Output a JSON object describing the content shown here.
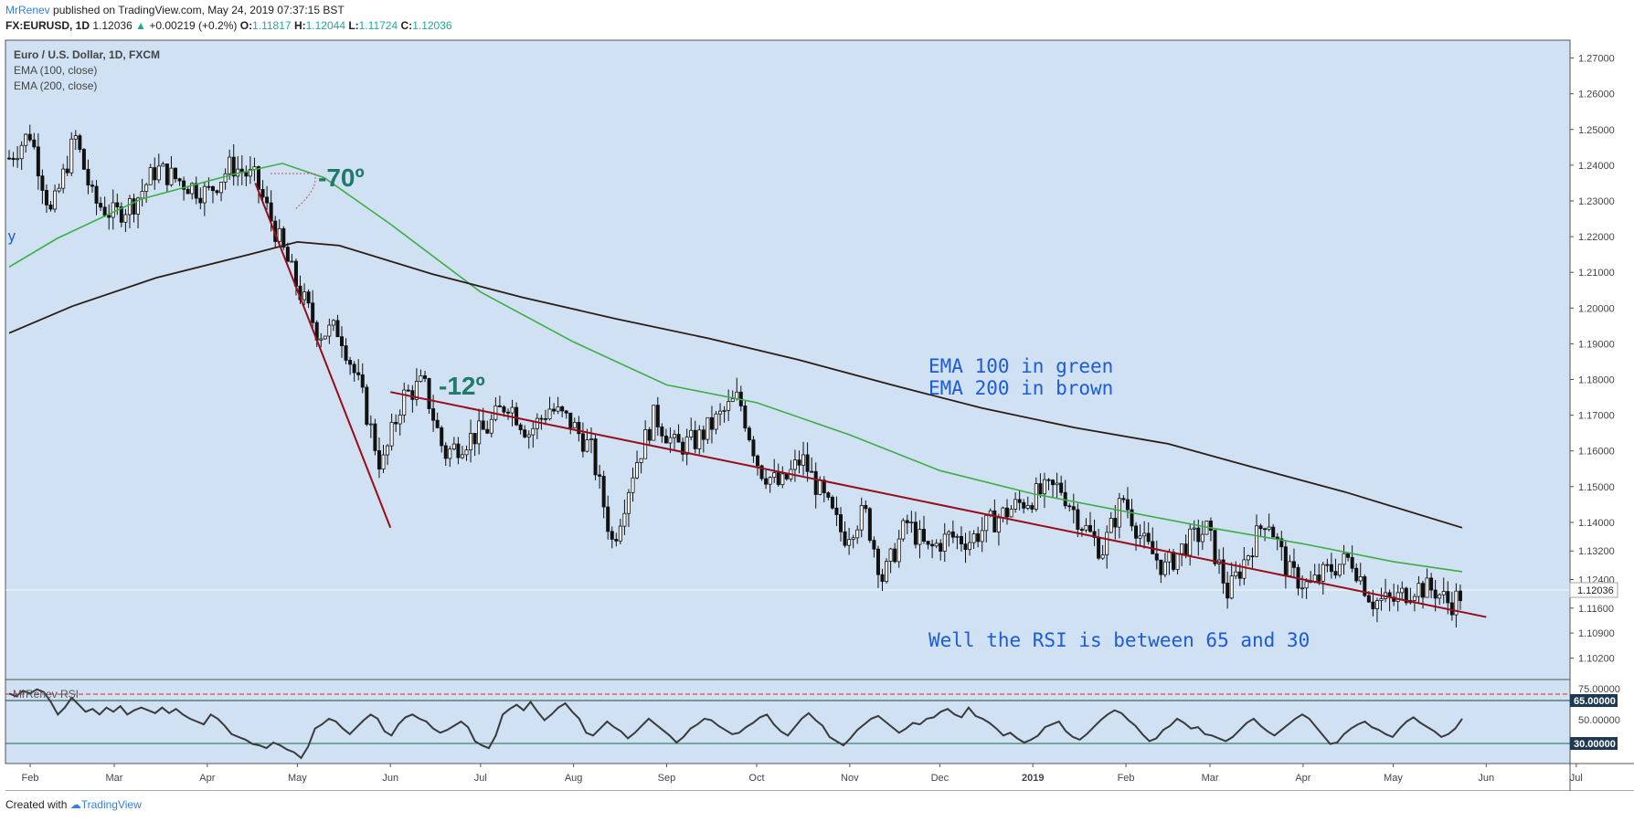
{
  "header": {
    "author": "MrRenev",
    "published": "published on TradingView.com, May 24, 2019 07:37:15 BST",
    "symbol": "FX:EURUSD, 1D",
    "last": "1.12036",
    "change": "+0.00219 (+0.2%)",
    "o_label": "O:",
    "o": "1.11817",
    "h_label": "H:",
    "h": "1.12044",
    "l_label": "L:",
    "l": "1.11724",
    "c_label": "C:",
    "c": "1.12036"
  },
  "legend": {
    "title": "Euro / U.S. Dollar, 1D, FXCM",
    "ema100": "EMA (100, close)",
    "ema200": "EMA (200, close)",
    "rsi": "MrRenev RSI"
  },
  "annotations": {
    "angle1": "-70º",
    "angle2": "-12º",
    "ema_note1": "EMA 100 in green",
    "ema_note2": "EMA 200 in brown",
    "rsi_note": "Well the RSI is between 65 and 30",
    "edge_letter": "y"
  },
  "footer": {
    "created": "Created with",
    "brand": "TradingView"
  },
  "colors": {
    "pane_bg": "#cfe1f3",
    "ema100": "#3cae45",
    "ema200": "#2b1d15",
    "trend": "#9a0c18",
    "annot": "#1f7a6a",
    "note": "#1e5bd6",
    "rsi_line": "#3a3a3a",
    "rsi_hi": "#e0262b",
    "rsi_mid": "#1a6a50"
  },
  "chart_data": {
    "type": "candlestick",
    "title": "Euro / U.S. Dollar, 1D, FXCM",
    "price_ticks": [
      "1.27000",
      "1.26000",
      "1.25000",
      "1.24000",
      "1.23000",
      "1.22000",
      "1.21000",
      "1.20000",
      "1.19000",
      "1.18000",
      "1.17000",
      "1.16000",
      "1.15000",
      "1.14000",
      "1.13200",
      "1.12400",
      "1.11600",
      "1.10900",
      "1.10200"
    ],
    "last_price_label": "1.12036",
    "ylim": [
      1.096,
      1.275
    ],
    "x_ticks": [
      "Feb",
      "Mar",
      "Apr",
      "May",
      "Jun",
      "Jul",
      "Aug",
      "Sep",
      "Oct",
      "Nov",
      "Dec",
      "2019",
      "Feb",
      "Mar",
      "Apr",
      "May",
      "Jun",
      "Jul"
    ],
    "close_points": [
      [
        "2018-01-25",
        1.242
      ],
      [
        "2018-02-01",
        1.249
      ],
      [
        "2018-02-08",
        1.226
      ],
      [
        "2018-02-16",
        1.248
      ],
      [
        "2018-02-22",
        1.23
      ],
      [
        "2018-03-01",
        1.226
      ],
      [
        "2018-03-08",
        1.23
      ],
      [
        "2018-03-15",
        1.239
      ],
      [
        "2018-03-22",
        1.236
      ],
      [
        "2018-04-01",
        1.232
      ],
      [
        "2018-04-09",
        1.24
      ],
      [
        "2018-04-17",
        1.236
      ],
      [
        "2018-04-24",
        1.221
      ],
      [
        "2018-05-01",
        1.206
      ],
      [
        "2018-05-08",
        1.193
      ],
      [
        "2018-05-15",
        1.194
      ],
      [
        "2018-05-22",
        1.177
      ],
      [
        "2018-05-29",
        1.155
      ],
      [
        "2018-06-05",
        1.175
      ],
      [
        "2018-06-12",
        1.179
      ],
      [
        "2018-06-19",
        1.159
      ],
      [
        "2018-06-26",
        1.163
      ],
      [
        "2018-07-03",
        1.166
      ],
      [
        "2018-07-10",
        1.174
      ],
      [
        "2018-07-17",
        1.165
      ],
      [
        "2018-07-24",
        1.172
      ],
      [
        "2018-07-31",
        1.168
      ],
      [
        "2018-08-07",
        1.16
      ],
      [
        "2018-08-14",
        1.134
      ],
      [
        "2018-08-21",
        1.155
      ],
      [
        "2018-08-28",
        1.17
      ],
      [
        "2018-09-04",
        1.161
      ],
      [
        "2018-09-11",
        1.163
      ],
      [
        "2018-09-18",
        1.169
      ],
      [
        "2018-09-25",
        1.175
      ],
      [
        "2018-10-02",
        1.155
      ],
      [
        "2018-10-09",
        1.15
      ],
      [
        "2018-10-16",
        1.158
      ],
      [
        "2018-10-23",
        1.147
      ],
      [
        "2018-10-30",
        1.136
      ],
      [
        "2018-11-06",
        1.143
      ],
      [
        "2018-11-12",
        1.124
      ],
      [
        "2018-11-20",
        1.14
      ],
      [
        "2018-11-27",
        1.132
      ],
      [
        "2018-12-04",
        1.136
      ],
      [
        "2018-12-11",
        1.135
      ],
      [
        "2018-12-18",
        1.14
      ],
      [
        "2018-12-27",
        1.145
      ],
      [
        "2019-01-03",
        1.148
      ],
      [
        "2019-01-10",
        1.15
      ],
      [
        "2019-01-17",
        1.14
      ],
      [
        "2019-01-24",
        1.132
      ],
      [
        "2019-01-31",
        1.147
      ],
      [
        "2019-02-07",
        1.134
      ],
      [
        "2019-02-14",
        1.127
      ],
      [
        "2019-02-21",
        1.134
      ],
      [
        "2019-02-28",
        1.138
      ],
      [
        "2019-03-07",
        1.12
      ],
      [
        "2019-03-14",
        1.132
      ],
      [
        "2019-03-20",
        1.142
      ],
      [
        "2019-03-27",
        1.126
      ],
      [
        "2019-04-03",
        1.122
      ],
      [
        "2019-04-10",
        1.127
      ],
      [
        "2019-04-17",
        1.13
      ],
      [
        "2019-04-24",
        1.118
      ],
      [
        "2019-05-01",
        1.118
      ],
      [
        "2019-05-08",
        1.122
      ],
      [
        "2019-05-15",
        1.121
      ],
      [
        "2019-05-20",
        1.117
      ],
      [
        "2019-05-24",
        1.12036
      ]
    ],
    "series": [
      {
        "name": "EMA (100, close)",
        "points": [
          [
            "2018-01-25",
            1.2115
          ],
          [
            "2018-02-10",
            1.2195
          ],
          [
            "2018-03-10",
            1.2305
          ],
          [
            "2018-04-10",
            1.2375
          ],
          [
            "2018-04-26",
            1.2405
          ],
          [
            "2018-05-10",
            1.2365
          ],
          [
            "2018-06-01",
            1.2235
          ],
          [
            "2018-07-01",
            1.2045
          ],
          [
            "2018-08-01",
            1.1905
          ],
          [
            "2018-09-01",
            1.1785
          ],
          [
            "2018-10-01",
            1.1735
          ],
          [
            "2018-11-01",
            1.1645
          ],
          [
            "2018-12-01",
            1.1545
          ],
          [
            "2019-01-01",
            1.148
          ],
          [
            "2019-02-01",
            1.143
          ],
          [
            "2019-03-01",
            1.1385
          ],
          [
            "2019-04-01",
            1.134
          ],
          [
            "2019-05-01",
            1.129
          ],
          [
            "2019-05-24",
            1.1262
          ]
        ]
      },
      {
        "name": "EMA (200, close)",
        "points": [
          [
            "2018-01-25",
            1.193
          ],
          [
            "2018-02-15",
            1.2005
          ],
          [
            "2018-03-15",
            1.2085
          ],
          [
            "2018-04-15",
            1.215
          ],
          [
            "2018-05-01",
            1.2185
          ],
          [
            "2018-05-15",
            1.2175
          ],
          [
            "2018-06-15",
            1.2095
          ],
          [
            "2018-07-15",
            1.203
          ],
          [
            "2018-08-15",
            1.197
          ],
          [
            "2018-09-15",
            1.1915
          ],
          [
            "2018-10-15",
            1.1855
          ],
          [
            "2018-11-15",
            1.1785
          ],
          [
            "2018-12-15",
            1.172
          ],
          [
            "2019-01-15",
            1.1665
          ],
          [
            "2019-02-15",
            1.162
          ],
          [
            "2019-03-15",
            1.1555
          ],
          [
            "2019-04-15",
            1.1485
          ],
          [
            "2019-05-24",
            1.1385
          ]
        ]
      }
    ],
    "trendlines": [
      {
        "from": [
          "2018-04-17",
          1.235
        ],
        "to": [
          "2018-06-01",
          1.1385
        ]
      },
      {
        "from": [
          "2018-06-01",
          1.1765
        ],
        "to": [
          "2019-06-01",
          1.1135
        ]
      }
    ],
    "rsi": {
      "name": "MrRenev RSI",
      "ticks": [
        "75.00000",
        "50.00000"
      ],
      "levels": [
        "65.00000",
        "30.00000"
      ],
      "ylim": [
        20,
        80
      ],
      "values": [
        70,
        68,
        72,
        70,
        73,
        71,
        64,
        55,
        60,
        67,
        62,
        57,
        59,
        55,
        60,
        57,
        61,
        55,
        58,
        60,
        58,
        56,
        60,
        56,
        59,
        55,
        52,
        50,
        48,
        55,
        52,
        47,
        41,
        39,
        37,
        34,
        33,
        31,
        35,
        33,
        30,
        28,
        24,
        32,
        45,
        48,
        52,
        50,
        45,
        41,
        46,
        51,
        55,
        52,
        43,
        40,
        48,
        53,
        55,
        52,
        50,
        45,
        42,
        44,
        47,
        50,
        46,
        36,
        33,
        31,
        40,
        55,
        59,
        62,
        58,
        64,
        57,
        51,
        55,
        60,
        63,
        57,
        52,
        42,
        40,
        45,
        50,
        46,
        43,
        38,
        42,
        47,
        52,
        48,
        44,
        40,
        35,
        39,
        45,
        48,
        52,
        51,
        47,
        44,
        41,
        42,
        46,
        49,
        53,
        55,
        48,
        43,
        40,
        46,
        52,
        56,
        51,
        47,
        39,
        36,
        33,
        38,
        44,
        48,
        52,
        54,
        50,
        46,
        42,
        45,
        49,
        48,
        52,
        53,
        57,
        59,
        55,
        53,
        60,
        54,
        52,
        49,
        45,
        40,
        42,
        38,
        35,
        37,
        40,
        46,
        48,
        50,
        43,
        39,
        37,
        41,
        46,
        51,
        55,
        58,
        56,
        51,
        47,
        41,
        36,
        38,
        44,
        47,
        52,
        49,
        45,
        46,
        41,
        40,
        38,
        36,
        39,
        44,
        49,
        52,
        47,
        43,
        40,
        44,
        48,
        52,
        55,
        52,
        46,
        40,
        34,
        35,
        41,
        45,
        48,
        50,
        46,
        44,
        41,
        39,
        45,
        50,
        53,
        49,
        46,
        43,
        39,
        41,
        45,
        52
      ]
    }
  }
}
